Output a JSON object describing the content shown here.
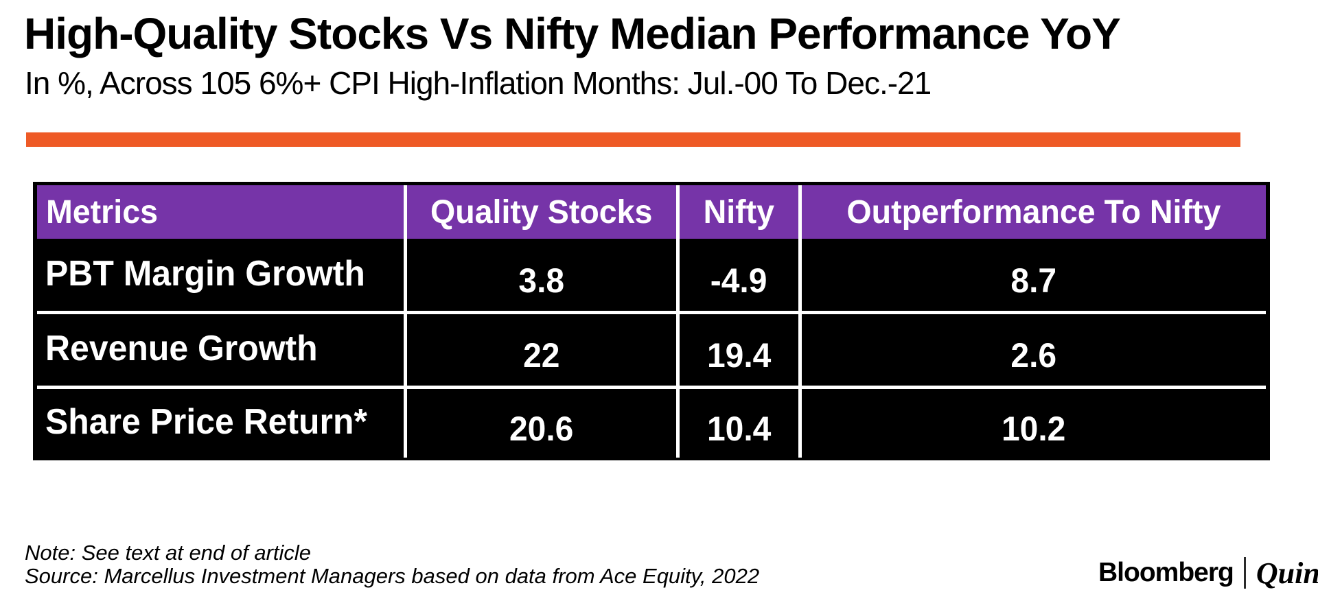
{
  "header": {
    "title": "High-Quality Stocks Vs Nifty Median Performance YoY",
    "subtitle": "In %, Across 105 6%+ CPI High-Inflation Months: Jul.-00 To Dec.-21"
  },
  "colors": {
    "accent_orange": "#EE5A26",
    "header_purple": "#7634A8",
    "row_black": "#000000"
  },
  "table": {
    "columns": [
      "Metrics",
      "Quality Stocks",
      "Nifty",
      "Outperformance To Nifty"
    ],
    "rows": [
      {
        "label": "PBT Margin Growth",
        "values": [
          "3.8",
          "-4.9",
          "8.7"
        ]
      },
      {
        "label": "Revenue Growth",
        "values": [
          "22",
          "19.4",
          "2.6"
        ]
      },
      {
        "label": "Share Price Return*",
        "values": [
          "20.6",
          "10.4",
          "10.2"
        ]
      }
    ]
  },
  "footer": {
    "note": "Note: See text at end of article",
    "source": "Source: Marcellus Investment Managers based on data from Ace Equity, 2022",
    "logo": {
      "bloomberg": "Bloomberg",
      "separator": "|",
      "quint": "Quint"
    }
  },
  "chart_data": {
    "type": "table",
    "title": "High-Quality Stocks Vs Nifty Median Performance YoY",
    "subtitle": "In %, Across 105 6%+ CPI High-Inflation Months: Jul.-00 To Dec.-21",
    "unit": "%",
    "columns": [
      "Metrics",
      "Quality Stocks",
      "Nifty",
      "Outperformance To Nifty"
    ],
    "rows": [
      [
        "PBT Margin Growth",
        3.8,
        -4.9,
        8.7
      ],
      [
        "Revenue Growth",
        22,
        19.4,
        2.6
      ],
      [
        "Share Price Return*",
        20.6,
        10.4,
        10.2
      ]
    ]
  }
}
